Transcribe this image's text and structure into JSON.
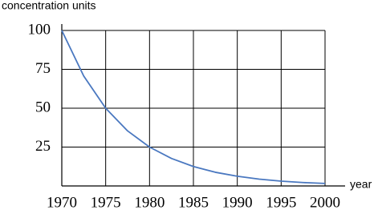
{
  "chart_data": {
    "type": "line",
    "y_label": "concentration units",
    "x_label": "year",
    "x": [
      1970,
      1972.5,
      1975,
      1977.5,
      1980,
      1982.5,
      1985,
      1987.5,
      1990,
      1992.5,
      1995,
      1997.5,
      2000
    ],
    "series": [
      {
        "name": "concentration",
        "color": "#4a78c0",
        "values": [
          100,
          70.7,
          50,
          35.4,
          25,
          17.7,
          12.5,
          8.8,
          6.25,
          4.4,
          3.1,
          2.2,
          1.6
        ]
      }
    ],
    "xlim": [
      1970,
      2000
    ],
    "ylim": [
      0,
      100
    ],
    "xticks": [
      1970,
      1975,
      1980,
      1985,
      1990,
      1995,
      2000
    ],
    "yticks": [
      25,
      50,
      75,
      100
    ],
    "grid": true
  }
}
